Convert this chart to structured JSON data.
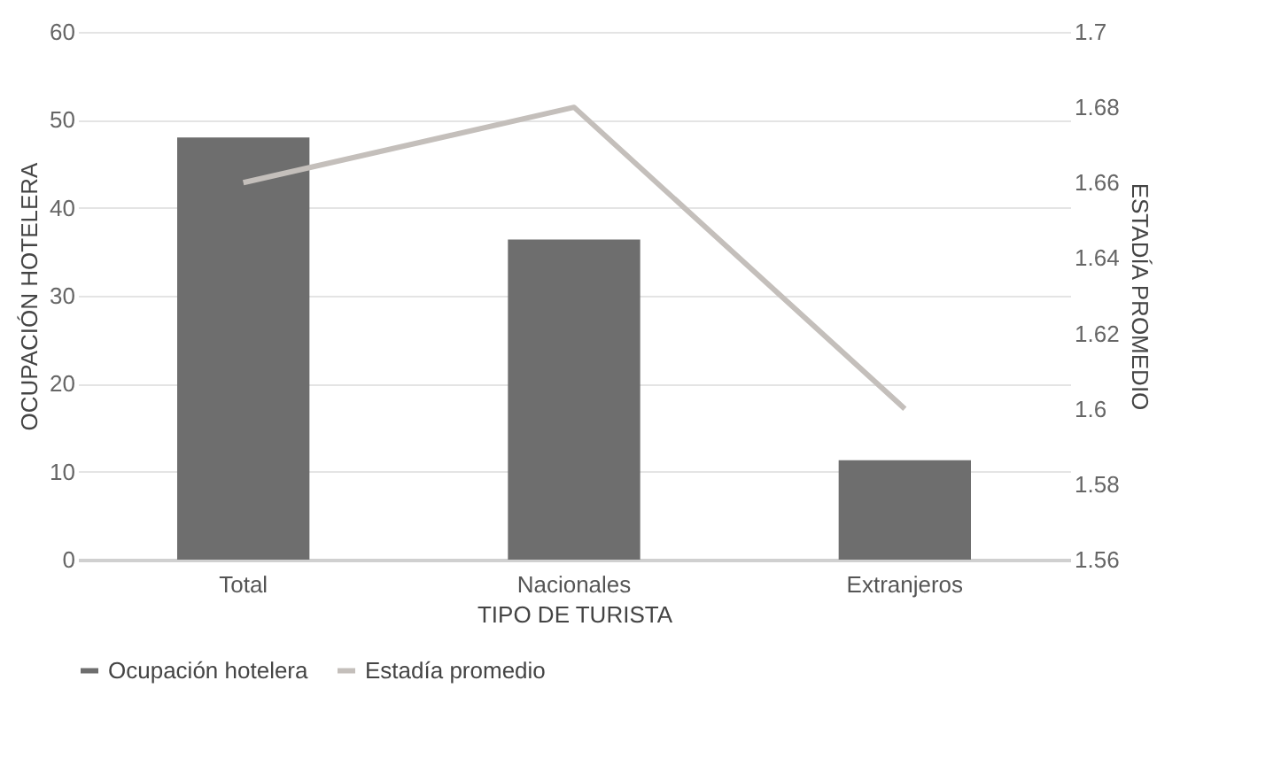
{
  "chart_data": {
    "type": "bar",
    "xlabel": "TIPO DE TURISTA",
    "ylabel": "OCUPACIÓN HOTELERA",
    "y2label": "ESTADÍA PROMEDIO",
    "categories": [
      "Total",
      "Nacionales",
      "Extranjeros"
    ],
    "series": [
      {
        "name": "Ocupación hotelera",
        "color": "#6e6e6e",
        "values": [
          48,
          36.4,
          11.3
        ]
      },
      {
        "name": "Estadía promedio",
        "type": "line",
        "axis": "y2",
        "color": "#c4bfbb",
        "values": [
          1.66,
          1.68,
          1.6
        ]
      }
    ],
    "ylim": [
      0,
      60
    ],
    "yticks": [
      0,
      10,
      20,
      30,
      40,
      50,
      60
    ],
    "y2lim": [
      1.56,
      1.7
    ],
    "y2ticks": [
      1.56,
      1.58,
      1.6,
      1.62,
      1.64,
      1.66,
      1.68,
      1.7
    ],
    "grid": "y",
    "legend": "bottom"
  }
}
